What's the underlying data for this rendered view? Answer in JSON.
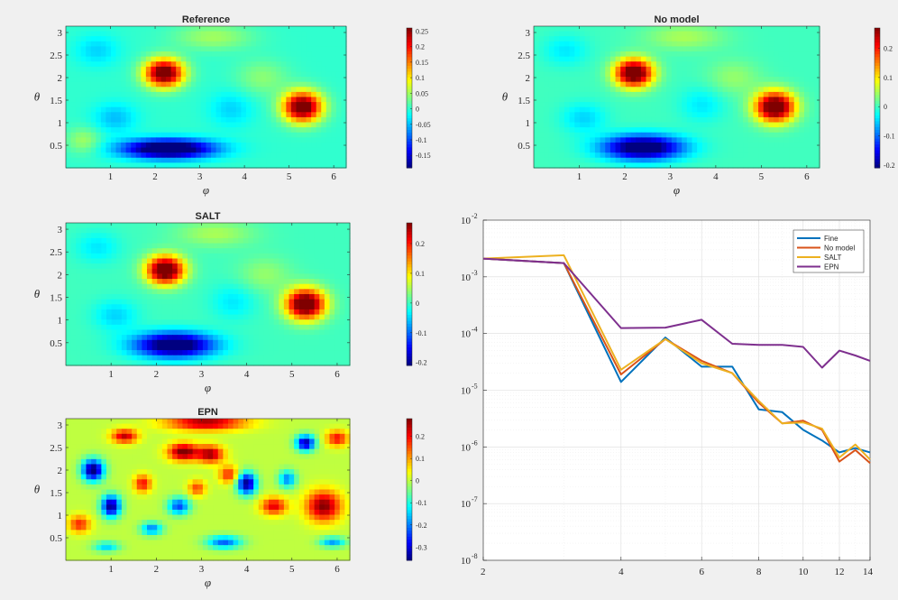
{
  "figure": {
    "background": "#f0f0f0",
    "colormap": "jet",
    "heatmaps": [
      {
        "id": "reference",
        "title": "Reference",
        "xlabel": "φ",
        "ylabel": "θ",
        "xticks": [
          "1",
          "2",
          "3",
          "4",
          "5",
          "6"
        ],
        "yticks": [
          "0.5",
          "1",
          "1.5",
          "2",
          "2.5",
          "3"
        ],
        "xlim": [
          0,
          6.28
        ],
        "ylim": [
          0,
          3.14
        ],
        "colorbar_ticks": [
          "-0.15",
          "-0.1",
          "-0.05",
          "0",
          "0.05",
          "0.1",
          "0.15",
          "0.2",
          "0.25"
        ],
        "clim": [
          -0.19,
          0.26
        ]
      },
      {
        "id": "no-model",
        "title": "No model",
        "xlabel": "φ",
        "ylabel": "θ",
        "xticks": [
          "1",
          "2",
          "3",
          "4",
          "5",
          "6"
        ],
        "yticks": [
          "0.5",
          "1",
          "1.5",
          "2",
          "2.5",
          "3"
        ],
        "xlim": [
          0,
          6.28
        ],
        "ylim": [
          0,
          3.14
        ],
        "colorbar_ticks": [
          "-0.2",
          "-0.1",
          "0",
          "0.1",
          "0.2"
        ],
        "clim": [
          -0.21,
          0.27
        ]
      },
      {
        "id": "salt",
        "title": "SALT",
        "xlabel": "φ",
        "ylabel": "θ",
        "xticks": [
          "1",
          "2",
          "3",
          "4",
          "5",
          "6"
        ],
        "yticks": [
          "0.5",
          "1",
          "1.5",
          "2",
          "2.5",
          "3"
        ],
        "xlim": [
          0,
          6.28
        ],
        "ylim": [
          0,
          3.14
        ],
        "colorbar_ticks": [
          "-0.2",
          "-0.1",
          "0",
          "0.1",
          "0.2"
        ],
        "clim": [
          -0.21,
          0.27
        ]
      },
      {
        "id": "epn",
        "title": "EPN",
        "xlabel": "φ",
        "ylabel": "θ",
        "xticks": [
          "1",
          "2",
          "3",
          "4",
          "5",
          "6"
        ],
        "yticks": [
          "0.5",
          "1",
          "1.5",
          "2",
          "2.5",
          "3"
        ],
        "xlim": [
          0,
          6.28
        ],
        "ylim": [
          0,
          3.14
        ],
        "colorbar_ticks": [
          "-0.3",
          "-0.2",
          "-0.1",
          "0",
          "0.1",
          "0.2"
        ],
        "clim": [
          -0.36,
          0.28
        ]
      }
    ]
  },
  "chart_data": [
    {
      "type": "heatmap",
      "title": "Reference",
      "xlabel": "φ",
      "ylabel": "θ",
      "xlim": [
        0,
        6.28
      ],
      "ylim": [
        0,
        3.14
      ],
      "clim": [
        -0.19,
        0.26
      ],
      "features": [
        {
          "phi": 2.2,
          "theta": 2.1,
          "value": 0.24
        },
        {
          "phi": 5.3,
          "theta": 1.35,
          "value": 0.25
        },
        {
          "phi": 2.3,
          "theta": 0.4,
          "value": -0.18
        }
      ]
    },
    {
      "type": "heatmap",
      "title": "No model",
      "xlabel": "φ",
      "ylabel": "θ",
      "xlim": [
        0,
        6.28
      ],
      "ylim": [
        0,
        3.14
      ],
      "clim": [
        -0.21,
        0.27
      ],
      "features": [
        {
          "phi": 2.2,
          "theta": 2.1,
          "value": 0.26
        },
        {
          "phi": 5.3,
          "theta": 1.35,
          "value": 0.27
        },
        {
          "phi": 2.4,
          "theta": 0.45,
          "value": -0.2
        }
      ]
    },
    {
      "type": "heatmap",
      "title": "SALT",
      "xlabel": "φ",
      "ylabel": "θ",
      "xlim": [
        0,
        6.28
      ],
      "ylim": [
        0,
        3.14
      ],
      "clim": [
        -0.21,
        0.27
      ],
      "features": [
        {
          "phi": 2.2,
          "theta": 2.1,
          "value": 0.26
        },
        {
          "phi": 5.3,
          "theta": 1.35,
          "value": 0.27
        },
        {
          "phi": 2.4,
          "theta": 0.45,
          "value": -0.2
        }
      ]
    },
    {
      "type": "heatmap",
      "title": "EPN",
      "xlabel": "φ",
      "ylabel": "θ",
      "xlim": [
        0,
        6.28
      ],
      "ylim": [
        0,
        3.14
      ],
      "clim": [
        -0.36,
        0.28
      ],
      "features": [
        {
          "phi": 3.1,
          "theta": 3.05,
          "value": 0.22
        },
        {
          "phi": 2.6,
          "theta": 2.4,
          "value": 0.25
        },
        {
          "phi": 1.3,
          "theta": 2.75,
          "value": 0.2
        },
        {
          "phi": 0.6,
          "theta": 2.0,
          "value": -0.33
        },
        {
          "phi": 1.0,
          "theta": 1.2,
          "value": -0.3
        },
        {
          "phi": 4.0,
          "theta": 1.7,
          "value": -0.3
        },
        {
          "phi": 5.7,
          "theta": 1.2,
          "value": 0.24
        },
        {
          "phi": 5.3,
          "theta": 2.6,
          "value": -0.3
        }
      ]
    },
    {
      "type": "line",
      "title": "",
      "xscale": "log",
      "yscale": "log",
      "xlim": [
        2,
        14
      ],
      "ylim": [
        1e-08,
        0.01
      ],
      "grid": true,
      "legend_position": "top-right",
      "xticks": [
        "2",
        "4",
        "6",
        "8",
        "10",
        "12",
        "14"
      ],
      "yticks": [
        {
          "base": "10",
          "exp": "-2"
        },
        {
          "base": "10",
          "exp": "-3"
        },
        {
          "base": "10",
          "exp": "-4"
        },
        {
          "base": "10",
          "exp": "-5"
        },
        {
          "base": "10",
          "exp": "-6"
        },
        {
          "base": "10",
          "exp": "-7"
        },
        {
          "base": "10",
          "exp": "-8"
        }
      ],
      "x": [
        2,
        3,
        4,
        5,
        6,
        7,
        8,
        9,
        10,
        11,
        12,
        13,
        14
      ],
      "series": [
        {
          "name": "Fine",
          "color": "#0072bd",
          "values": [
            0.0021,
            0.00175,
            1.4e-05,
            8.5e-05,
            2.6e-05,
            2.6e-05,
            4.6e-06,
            4.1e-06,
            2e-06,
            1.3e-06,
            8e-07,
            9.5e-07,
            8e-07
          ]
        },
        {
          "name": "No model",
          "color": "#d95319",
          "values": [
            0.0021,
            0.00175,
            1.9e-05,
            8e-05,
            3.3e-05,
            2e-05,
            6e-06,
            2.6e-06,
            2.9e-06,
            2e-06,
            5.5e-07,
            8.8e-07,
            5.2e-07
          ]
        },
        {
          "name": "SALT",
          "color": "#edb120",
          "values": [
            0.0021,
            0.0024,
            2.3e-05,
            8e-05,
            3e-05,
            2e-05,
            6.5e-06,
            2.6e-06,
            2.7e-06,
            2.1e-06,
            6.5e-07,
            1.1e-06,
            6e-07
          ]
        },
        {
          "name": "EPN",
          "color": "#7e2f8e",
          "values": [
            0.0021,
            0.00175,
            0.000125,
            0.000127,
            0.000175,
            6.6e-05,
            6.3e-05,
            6.3e-05,
            5.8e-05,
            2.5e-05,
            5e-05,
            4.1e-05,
            3.3e-05
          ]
        }
      ]
    }
  ]
}
